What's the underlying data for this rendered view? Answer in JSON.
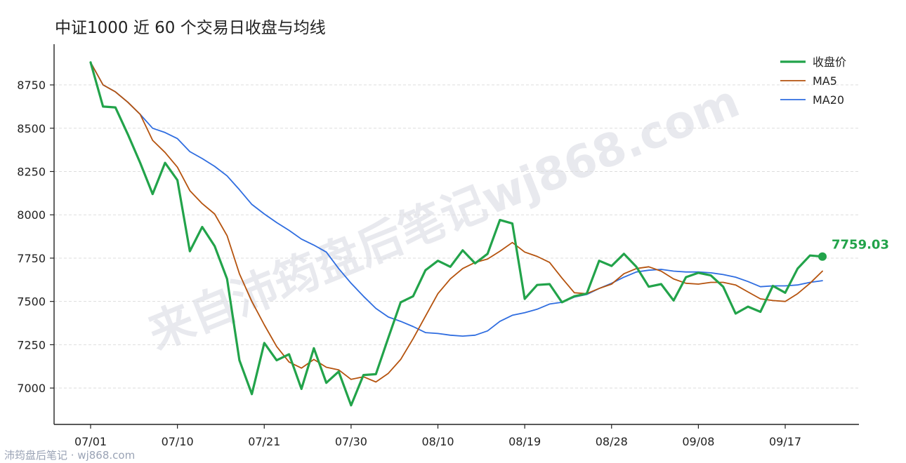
{
  "watermark": "来自沛筠盘后笔记wj868.com",
  "footer": "沛筠盘后笔记 · wj868.com",
  "colors": {
    "close": "#22a34a",
    "ma5": "#b5530e",
    "ma20": "#2f6de0",
    "grid": "#dddddd"
  },
  "chart_data": {
    "type": "line",
    "title": "中证1000 近 60 个交易日收盘与均线",
    "xlabel": "",
    "ylabel": "",
    "ylim": [
      6790,
      8985
    ],
    "grid": "y-dashed",
    "legend_position": "top-right",
    "x_ticks": [
      "07/01",
      "07/10",
      "07/21",
      "07/30",
      "08/10",
      "08/19",
      "08/28",
      "09/08",
      "09/17"
    ],
    "x_tick_indices": [
      0,
      7,
      14,
      21,
      28,
      35,
      42,
      49,
      56
    ],
    "y_ticks": [
      7000,
      7250,
      7500,
      7750,
      8000,
      8250,
      8500,
      8750
    ],
    "annotation": {
      "text": "7759.03",
      "index": 59,
      "value": 7759.03
    },
    "series": [
      {
        "name": "收盘价",
        "values": [
          8880,
          8625,
          8620,
          8465,
          8300,
          8120,
          8300,
          8200,
          7790,
          7930,
          7820,
          7630,
          7160,
          6965,
          7260,
          7160,
          7195,
          6995,
          7230,
          7030,
          7095,
          6900,
          7075,
          7080,
          7290,
          7495,
          7530,
          7680,
          7735,
          7700,
          7795,
          7720,
          7775,
          7970,
          7950,
          7515,
          7595,
          7600,
          7495,
          7530,
          7545,
          7735,
          7705,
          7775,
          7700,
          7585,
          7600,
          7505,
          7640,
          7665,
          7650,
          7585,
          7430,
          7470,
          7440,
          7590,
          7550,
          7690,
          7765,
          7759.03
        ]
      },
      {
        "name": "MA5",
        "values": [
          8880,
          8750,
          8710,
          8650,
          8580,
          8430,
          8360,
          8275,
          8140,
          8065,
          8005,
          7880,
          7660,
          7500,
          7365,
          7240,
          7150,
          7115,
          7165,
          7120,
          7105,
          7050,
          7065,
          7035,
          7085,
          7165,
          7285,
          7415,
          7545,
          7630,
          7690,
          7725,
          7745,
          7790,
          7840,
          7785,
          7760,
          7725,
          7635,
          7550,
          7545,
          7575,
          7600,
          7660,
          7690,
          7700,
          7675,
          7630,
          7605,
          7600,
          7610,
          7610,
          7595,
          7555,
          7515,
          7505,
          7500,
          7545,
          7605,
          7675
        ]
      },
      {
        "name": "MA20",
        "values": [
          8880,
          8750,
          8710,
          8650,
          8580,
          8500,
          8475,
          8440,
          8365,
          8325,
          8280,
          8225,
          8145,
          8060,
          8005,
          7955,
          7910,
          7860,
          7825,
          7785,
          7690,
          7605,
          7530,
          7460,
          7410,
          7385,
          7355,
          7320,
          7315,
          7305,
          7300,
          7305,
          7330,
          7385,
          7420,
          7435,
          7455,
          7485,
          7495,
          7525,
          7540,
          7575,
          7605,
          7640,
          7670,
          7680,
          7685,
          7675,
          7670,
          7670,
          7665,
          7655,
          7640,
          7615,
          7585,
          7590,
          7590,
          7595,
          7610,
          7620
        ]
      }
    ]
  }
}
